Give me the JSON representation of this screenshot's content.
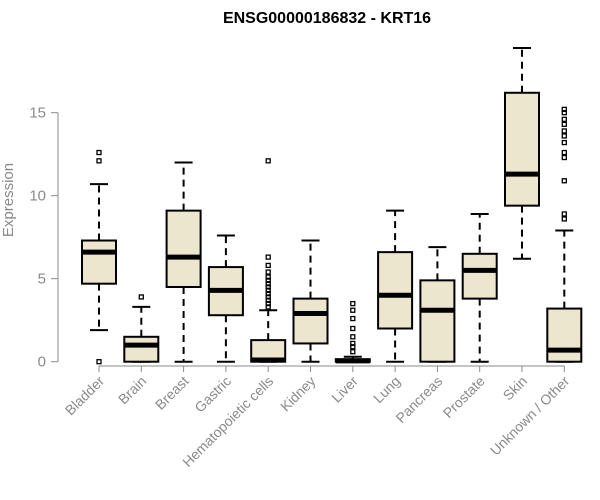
{
  "chart_data": {
    "type": "box",
    "title": "ENSG00000186832 - KRT16",
    "ylabel": "Expression",
    "xlabel": "",
    "ylim": [
      -0.5,
      19.5
    ],
    "yticks": [
      0,
      5,
      10,
      15
    ],
    "box_fill": "#ede6cf",
    "box_stroke": "#000000",
    "axis_color": "#8a8a8a",
    "categories": [
      "Bladder",
      "Brain",
      "Breast",
      "Gastric",
      "Hematopoietic cells",
      "Kidney",
      "Liver",
      "Lung",
      "Pancreas",
      "Prostate",
      "Skin",
      "Unknown / Other"
    ],
    "boxes": [
      {
        "category": "Bladder",
        "whisker_low": 1.9,
        "q1": 4.7,
        "median": 6.6,
        "q3": 7.3,
        "whisker_high": 10.7,
        "outliers": [
          0.0,
          12.1,
          12.6
        ]
      },
      {
        "category": "Brain",
        "whisker_low": 0.0,
        "q1": 0.0,
        "median": 1.0,
        "q3": 1.5,
        "whisker_high": 3.3,
        "outliers": [
          3.9
        ]
      },
      {
        "category": "Breast",
        "whisker_low": 0.0,
        "q1": 4.5,
        "median": 6.3,
        "q3": 9.1,
        "whisker_high": 12.0,
        "outliers": []
      },
      {
        "category": "Gastric",
        "whisker_low": 0.0,
        "q1": 2.8,
        "median": 4.3,
        "q3": 5.7,
        "whisker_high": 7.6,
        "outliers": []
      },
      {
        "category": "Hematopoietic cells",
        "whisker_low": 0.0,
        "q1": 0.0,
        "median": 0.1,
        "q3": 1.3,
        "whisker_high": 3.1,
        "outliers": [
          3.3,
          3.5,
          3.7,
          3.9,
          4.1,
          4.3,
          4.5,
          4.7,
          4.9,
          5.1,
          5.4,
          5.8,
          6.3,
          12.1
        ]
      },
      {
        "category": "Kidney",
        "whisker_low": 0.0,
        "q1": 1.1,
        "median": 2.9,
        "q3": 3.8,
        "whisker_high": 7.3,
        "outliers": []
      },
      {
        "category": "Liver",
        "whisker_low": 0.0,
        "q1": 0.0,
        "median": 0.05,
        "q3": 0.15,
        "whisker_high": 0.3,
        "outliers": [
          0.6,
          0.9,
          1.1,
          1.5,
          2.0,
          2.6,
          3.1,
          3.5
        ]
      },
      {
        "category": "Lung",
        "whisker_low": 0.0,
        "q1": 2.0,
        "median": 4.0,
        "q3": 6.6,
        "whisker_high": 9.1,
        "outliers": []
      },
      {
        "category": "Pancreas",
        "whisker_low": 0.0,
        "q1": 0.0,
        "median": 3.1,
        "q3": 4.9,
        "whisker_high": 6.9,
        "outliers": []
      },
      {
        "category": "Prostate",
        "whisker_low": 0.0,
        "q1": 3.8,
        "median": 5.5,
        "q3": 6.5,
        "whisker_high": 8.9,
        "outliers": []
      },
      {
        "category": "Skin",
        "whisker_low": 6.2,
        "q1": 9.4,
        "median": 11.3,
        "q3": 16.2,
        "whisker_high": 18.9,
        "outliers": []
      },
      {
        "category": "Unknown / Other",
        "whisker_low": 0.0,
        "q1": 0.0,
        "median": 0.7,
        "q3": 3.2,
        "whisker_high": 7.9,
        "outliers": [
          8.6,
          8.9,
          10.9,
          12.3,
          12.6,
          13.2,
          13.6,
          13.9,
          14.3,
          14.6,
          15.0,
          15.2
        ]
      }
    ]
  }
}
